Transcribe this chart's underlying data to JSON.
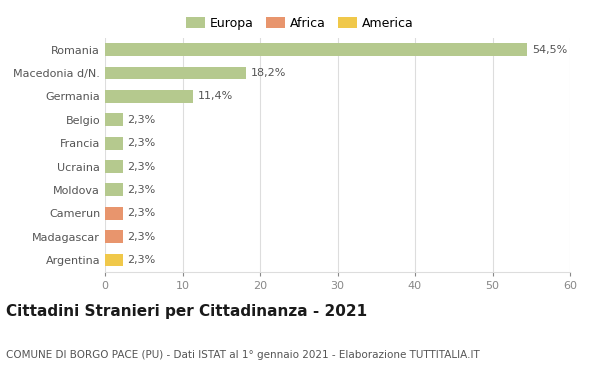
{
  "categories": [
    "Romania",
    "Macedonia d/N.",
    "Germania",
    "Belgio",
    "Francia",
    "Ucraina",
    "Moldova",
    "Camerun",
    "Madagascar",
    "Argentina"
  ],
  "values": [
    54.5,
    18.2,
    11.4,
    2.3,
    2.3,
    2.3,
    2.3,
    2.3,
    2.3,
    2.3
  ],
  "labels": [
    "54,5%",
    "18,2%",
    "11,4%",
    "2,3%",
    "2,3%",
    "2,3%",
    "2,3%",
    "2,3%",
    "2,3%",
    "2,3%"
  ],
  "bar_colors": [
    "#b5c98e",
    "#b5c98e",
    "#b5c98e",
    "#b5c98e",
    "#b5c98e",
    "#b5c98e",
    "#b5c98e",
    "#e8956d",
    "#e8956d",
    "#f0c84a"
  ],
  "legend_labels": [
    "Europa",
    "Africa",
    "America"
  ],
  "legend_colors": [
    "#b5c98e",
    "#e8956d",
    "#f0c84a"
  ],
  "title": "Cittadini Stranieri per Cittadinanza - 2021",
  "subtitle": "COMUNE DI BORGO PACE (PU) - Dati ISTAT al 1° gennaio 2021 - Elaborazione TUTTITALIA.IT",
  "xlim": [
    0,
    60
  ],
  "xticks": [
    0,
    10,
    20,
    30,
    40,
    50,
    60
  ],
  "background_color": "#ffffff",
  "grid_color": "#dddddd",
  "title_fontsize": 11,
  "subtitle_fontsize": 7.5,
  "label_fontsize": 8,
  "tick_fontsize": 8,
  "legend_fontsize": 9
}
